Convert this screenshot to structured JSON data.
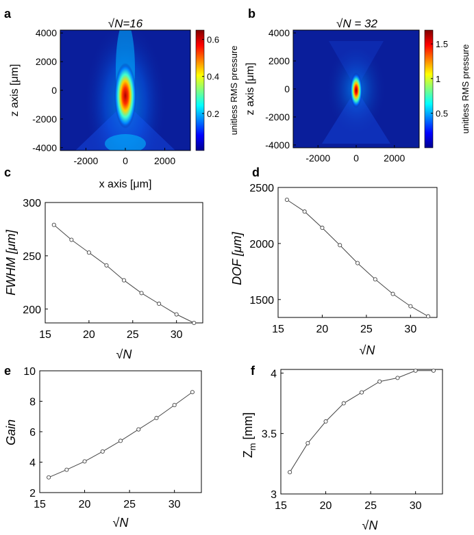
{
  "panels": [
    {
      "id": "a",
      "label": "a",
      "title": "√N=16",
      "xlabel": "x axis [μm]",
      "ylabel": "z axis [μm]",
      "colorbar_label": "unitless RMS pressure",
      "xticks": [
        "-2000",
        "0",
        "2000"
      ],
      "xtick_values": [
        -2000,
        0,
        2000
      ],
      "yticks": [
        "4000",
        "2000",
        "0",
        "-2000",
        "-4000"
      ],
      "ytick_values": [
        4000,
        2000,
        0,
        -2000,
        -4000
      ],
      "cbar_ticks": [
        "0.6",
        "0.4",
        "0.2"
      ],
      "cbar_values": [
        0.6,
        0.4,
        0.2
      ]
    },
    {
      "id": "b",
      "label": "b",
      "title": "√N = 32",
      "xlabel": "",
      "ylabel": "z axis [μm]",
      "colorbar_label": "unitless RMS pressure",
      "xticks": [
        "-2000",
        "0",
        "2000"
      ],
      "xtick_values": [
        -2000,
        0,
        2000
      ],
      "yticks": [
        "4000",
        "2000",
        "0",
        "-2000",
        "-4000"
      ],
      "ytick_values": [
        4000,
        2000,
        0,
        -2000,
        -4000
      ],
      "cbar_ticks": [
        "1.5",
        "1",
        "0.5"
      ],
      "cbar_values": [
        1.5,
        1,
        0.5
      ]
    }
  ],
  "chart_data": [
    {
      "panel": "a",
      "type": "heatmap",
      "title": "√N=16",
      "xlabel": "x axis [μm]",
      "ylabel": "z axis [μm]",
      "xlim": [
        -3300,
        3300
      ],
      "ylim": [
        -4200,
        4200
      ],
      "colorbar_range": [
        0,
        0.65
      ],
      "peak": {
        "x": 0,
        "z": -600,
        "value": 0.63
      }
    },
    {
      "panel": "b",
      "type": "heatmap",
      "title": "√N = 32",
      "xlabel": "",
      "ylabel": "z axis [μm]",
      "xlim": [
        -3300,
        3300
      ],
      "ylim": [
        -4200,
        4200
      ],
      "colorbar_range": [
        0,
        1.7
      ],
      "peak": {
        "x": 0,
        "z": 0,
        "value": 1.65
      }
    },
    {
      "panel": "c",
      "label": "c",
      "type": "line",
      "xlabel": "√N",
      "ylabel": "FWHM [μm]",
      "x": [
        16,
        18,
        20,
        22,
        24,
        26,
        28,
        30,
        32
      ],
      "y": [
        279,
        265,
        253,
        241,
        227,
        215,
        205,
        195,
        187
      ],
      "xlim": [
        15,
        33
      ],
      "ylim": [
        187,
        300
      ],
      "xticks": [
        "15",
        "20",
        "25",
        "30"
      ],
      "xtick_values": [
        15,
        20,
        25,
        30
      ],
      "yticks": [
        "300",
        "250",
        "200"
      ],
      "ytick_values": [
        300,
        250,
        200
      ]
    },
    {
      "panel": "d",
      "label": "d",
      "type": "line",
      "xlabel": "√N",
      "ylabel": "DOF [μm]",
      "x": [
        16,
        18,
        20,
        22,
        24,
        26,
        28,
        30,
        32
      ],
      "y": [
        2390,
        2285,
        2140,
        1985,
        1825,
        1680,
        1550,
        1440,
        1350
      ],
      "xlim": [
        15,
        33
      ],
      "ylim": [
        1340,
        2500
      ],
      "xticks": [
        "15",
        "20",
        "25",
        "30"
      ],
      "xtick_values": [
        15,
        20,
        25,
        30
      ],
      "yticks": [
        "2500",
        "2000",
        "1500"
      ],
      "ytick_values": [
        2500,
        2000,
        1500
      ]
    },
    {
      "panel": "e",
      "label": "e",
      "type": "line",
      "xlabel": "√N",
      "ylabel": "Gain",
      "x": [
        16,
        18,
        20,
        22,
        24,
        26,
        28,
        30,
        32
      ],
      "y": [
        3.0,
        3.5,
        4.05,
        4.7,
        5.4,
        6.15,
        6.9,
        7.75,
        8.6
      ],
      "xlim": [
        15,
        33
      ],
      "ylim": [
        2,
        10
      ],
      "xticks": [
        "15",
        "20",
        "25",
        "30"
      ],
      "xtick_values": [
        15,
        20,
        25,
        30
      ],
      "yticks": [
        "10",
        "8",
        "6",
        "4",
        "2"
      ],
      "ytick_values": [
        10,
        8,
        6,
        4,
        2
      ]
    },
    {
      "panel": "f",
      "label": "f",
      "type": "line",
      "xlabel": "√N",
      "ylabel": "Z_m [mm]",
      "x": [
        16,
        18,
        20,
        22,
        24,
        26,
        28,
        30,
        32
      ],
      "y": [
        3.18,
        3.42,
        3.6,
        3.75,
        3.84,
        3.93,
        3.96,
        4.02,
        4.02
      ],
      "xlim": [
        15,
        33
      ],
      "ylim": [
        3,
        4.03
      ],
      "xticks": [
        "15",
        "20",
        "25",
        "30"
      ],
      "xtick_values": [
        15,
        20,
        25,
        30
      ],
      "yticks": [
        "4",
        "3.5",
        "3"
      ],
      "ytick_values": [
        4,
        3.5,
        3
      ]
    }
  ],
  "colors": {
    "line": "#444444",
    "marker": "#444444",
    "axis": "#000000",
    "heatmap_bg": "#0a1e9b"
  }
}
